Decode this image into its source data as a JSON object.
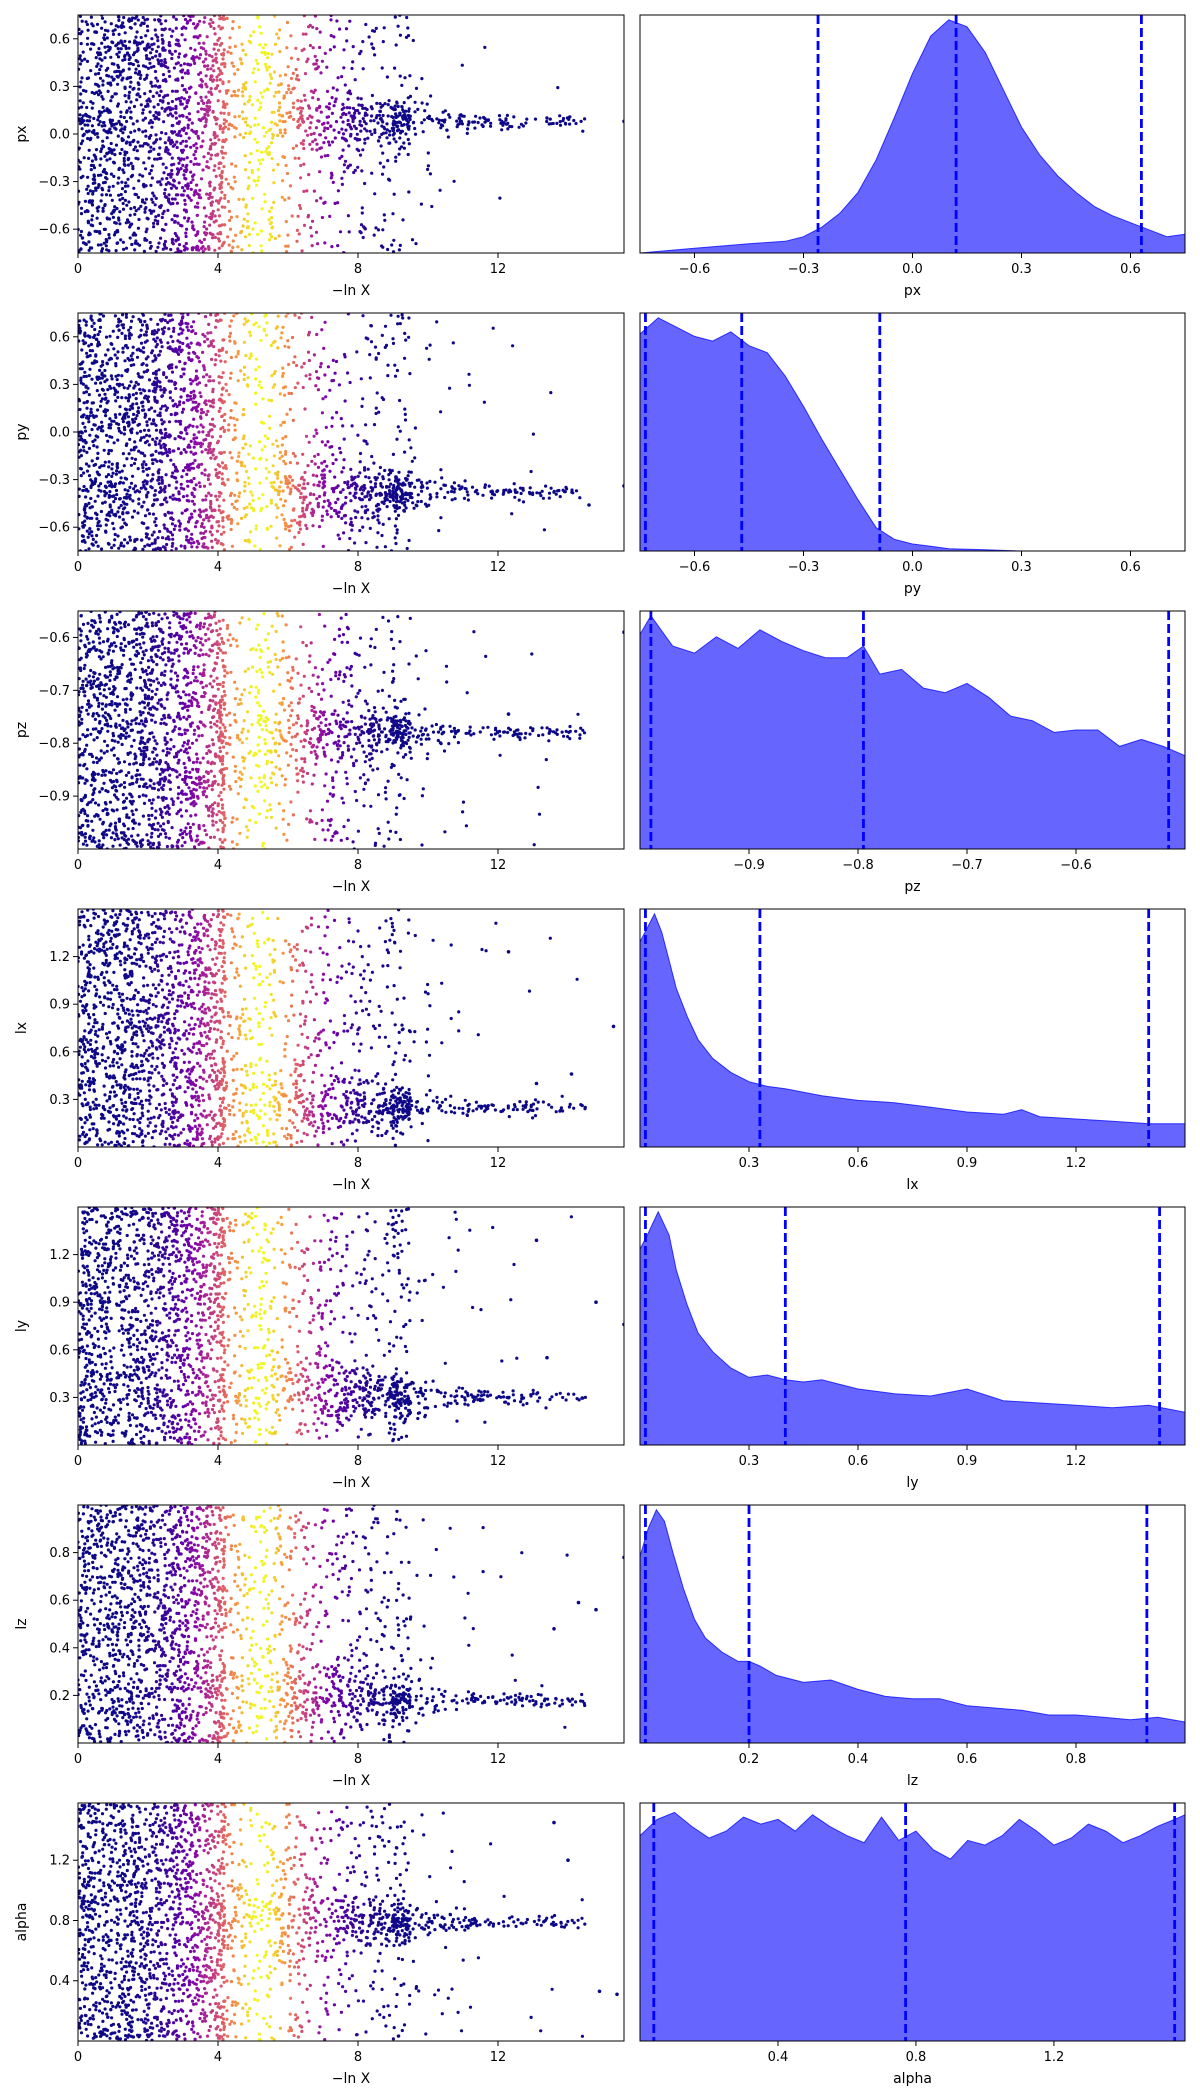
{
  "colors": {
    "trace_colormap": "plasma",
    "kde_fill": "#0000ff",
    "kde_fill_alpha": 0.6,
    "quantile_line": "#0000ff",
    "axes_frame": "#000000"
  },
  "chart_data": [
    {
      "type": "scatter",
      "parameter": "px",
      "xlabel": "−ln X",
      "ylabel": "px",
      "xlim": [
        0,
        15.6
      ],
      "ylim": [
        -0.75,
        0.75
      ],
      "xticks": [
        0,
        4,
        8,
        12
      ],
      "xtick_labels": [
        "0",
        "4",
        "8",
        "12"
      ],
      "yticks": [
        0.6,
        0.3,
        0.0,
        -0.3,
        -0.6
      ],
      "ytick_labels": [
        "0.6",
        "0.3",
        "0.0",
        "−0.3",
        "−0.6"
      ],
      "spread_center": 0.08,
      "colorbar_peak": 5.2,
      "points_x": [
        15.6
      ],
      "points_y": [
        0.08
      ]
    },
    {
      "type": "area",
      "parameter": "px",
      "xlabel": "px",
      "xlim": [
        -0.75,
        0.75
      ],
      "xticks": [
        -0.6,
        -0.3,
        0.0,
        0.3,
        0.6
      ],
      "xtick_labels": [
        "−0.6",
        "−0.3",
        "0.0",
        "0.3",
        "0.6"
      ],
      "quantiles": [
        -0.26,
        0.12,
        0.63
      ],
      "density_x": [
        -0.75,
        -0.6,
        -0.45,
        -0.35,
        -0.3,
        -0.25,
        -0.2,
        -0.15,
        -0.1,
        -0.05,
        0.0,
        0.05,
        0.1,
        0.15,
        0.2,
        0.25,
        0.3,
        0.35,
        0.4,
        0.45,
        0.5,
        0.55,
        0.6,
        0.65,
        0.7,
        0.75
      ],
      "density_y": [
        0.0,
        0.02,
        0.04,
        0.05,
        0.07,
        0.11,
        0.17,
        0.26,
        0.4,
        0.58,
        0.77,
        0.93,
        1.0,
        0.97,
        0.86,
        0.7,
        0.54,
        0.42,
        0.33,
        0.26,
        0.2,
        0.16,
        0.13,
        0.1,
        0.07,
        0.08
      ]
    },
    {
      "type": "scatter",
      "parameter": "py",
      "xlabel": "−ln X",
      "ylabel": "py",
      "xlim": [
        0,
        15.6
      ],
      "ylim": [
        -0.75,
        0.75
      ],
      "xticks": [
        0,
        4,
        8,
        12
      ],
      "xtick_labels": [
        "0",
        "4",
        "8",
        "12"
      ],
      "yticks": [
        0.6,
        0.3,
        0.0,
        -0.3,
        -0.6
      ],
      "ytick_labels": [
        "0.6",
        "0.3",
        "0.0",
        "−0.3",
        "−0.6"
      ],
      "spread_center": -0.38,
      "colorbar_peak": 5.2,
      "points_x": [
        15.6,
        14.6
      ],
      "points_y": [
        -0.34,
        -0.46
      ]
    },
    {
      "type": "area",
      "parameter": "py",
      "xlabel": "py",
      "xlim": [
        -0.75,
        0.75
      ],
      "xticks": [
        -0.6,
        -0.3,
        0.0,
        0.3,
        0.6
      ],
      "xtick_labels": [
        "−0.6",
        "−0.3",
        "0.0",
        "0.3",
        "0.6"
      ],
      "quantiles": [
        -0.735,
        -0.47,
        -0.09
      ],
      "density_x": [
        -0.75,
        -0.7,
        -0.65,
        -0.6,
        -0.55,
        -0.5,
        -0.45,
        -0.4,
        -0.35,
        -0.3,
        -0.25,
        -0.2,
        -0.15,
        -0.1,
        -0.05,
        0.0,
        0.05,
        0.1,
        0.2,
        0.3,
        0.75
      ],
      "density_y": [
        0.93,
        1.0,
        0.96,
        0.92,
        0.9,
        0.94,
        0.88,
        0.85,
        0.75,
        0.62,
        0.48,
        0.35,
        0.22,
        0.1,
        0.05,
        0.03,
        0.02,
        0.01,
        0.005,
        0.0,
        0.0
      ]
    },
    {
      "type": "scatter",
      "parameter": "pz",
      "xlabel": "−ln X",
      "ylabel": "pz",
      "xlim": [
        0,
        15.6
      ],
      "ylim": [
        -1.0,
        -0.55
      ],
      "xticks": [
        0,
        4,
        8,
        12
      ],
      "xtick_labels": [
        "0",
        "4",
        "8",
        "12"
      ],
      "yticks": [
        -0.6,
        -0.7,
        -0.8,
        -0.9
      ],
      "ytick_labels": [
        "−0.6",
        "−0.7",
        "−0.8",
        "−0.9"
      ],
      "spread_center": -0.78,
      "colorbar_peak": 5.2,
      "points_x": [
        15.6,
        12.3
      ],
      "points_y": [
        -0.59,
        -0.745
      ]
    },
    {
      "type": "area",
      "parameter": "pz",
      "xlabel": "pz",
      "xlim": [
        -1.0,
        -0.5
      ],
      "xticks": [
        -0.9,
        -0.8,
        -0.7,
        -0.6
      ],
      "xtick_labels": [
        "−0.9",
        "−0.8",
        "−0.7",
        "−0.6"
      ],
      "quantiles": [
        -0.99,
        -0.795,
        -0.515
      ],
      "density_x": [
        -1.0,
        -0.99,
        -0.97,
        -0.95,
        -0.93,
        -0.91,
        -0.89,
        -0.87,
        -0.85,
        -0.83,
        -0.81,
        -0.795,
        -0.78,
        -0.76,
        -0.74,
        -0.72,
        -0.7,
        -0.68,
        -0.66,
        -0.64,
        -0.62,
        -0.6,
        -0.58,
        -0.56,
        -0.54,
        -0.52,
        -0.5
      ],
      "density_y": [
        0.92,
        1.0,
        0.87,
        0.84,
        0.91,
        0.86,
        0.94,
        0.89,
        0.85,
        0.82,
        0.82,
        0.87,
        0.75,
        0.77,
        0.69,
        0.67,
        0.71,
        0.65,
        0.57,
        0.55,
        0.5,
        0.51,
        0.51,
        0.44,
        0.47,
        0.44,
        0.4
      ]
    },
    {
      "type": "scatter",
      "parameter": "lx",
      "xlabel": "−ln X",
      "ylabel": "lx",
      "xlim": [
        0,
        15.6
      ],
      "ylim": [
        0.0,
        1.5
      ],
      "xticks": [
        0,
        4,
        8,
        12
      ],
      "xtick_labels": [
        "0",
        "4",
        "8",
        "12"
      ],
      "yticks": [
        1.2,
        0.9,
        0.6,
        0.3
      ],
      "ytick_labels": [
        "1.2",
        "0.9",
        "0.6",
        "0.3"
      ],
      "spread_center": 0.25,
      "colorbar_peak": 5.2,
      "points_x": [
        15.3,
        12.3,
        14.1,
        13.1
      ],
      "points_y": [
        0.76,
        1.23,
        0.46,
        0.4
      ]
    },
    {
      "type": "area",
      "parameter": "lx",
      "xlabel": "lx",
      "xlim": [
        0.0,
        1.5
      ],
      "xticks": [
        0.3,
        0.6,
        0.9,
        1.2
      ],
      "xtick_labels": [
        "0.3",
        "0.6",
        "0.9",
        "1.2"
      ],
      "quantiles": [
        0.015,
        0.33,
        1.4
      ],
      "density_x": [
        0.0,
        0.02,
        0.04,
        0.06,
        0.08,
        0.1,
        0.13,
        0.16,
        0.2,
        0.25,
        0.3,
        0.35,
        0.4,
        0.5,
        0.6,
        0.7,
        0.8,
        0.9,
        1.0,
        1.05,
        1.1,
        1.2,
        1.3,
        1.4,
        1.5
      ],
      "density_y": [
        0.88,
        0.94,
        1.0,
        0.92,
        0.8,
        0.68,
        0.56,
        0.46,
        0.38,
        0.32,
        0.28,
        0.26,
        0.25,
        0.22,
        0.2,
        0.19,
        0.17,
        0.15,
        0.14,
        0.16,
        0.13,
        0.12,
        0.11,
        0.1,
        0.1
      ]
    },
    {
      "type": "scatter",
      "parameter": "ly",
      "xlabel": "−ln X",
      "ylabel": "ly",
      "xlim": [
        0,
        15.6
      ],
      "ylim": [
        0.0,
        1.5
      ],
      "xticks": [
        0,
        4,
        8,
        12
      ],
      "xtick_labels": [
        "0",
        "4",
        "8",
        "12"
      ],
      "yticks": [
        1.2,
        0.9,
        0.6,
        0.3
      ],
      "ytick_labels": [
        "1.2",
        "0.9",
        "0.6",
        "0.3"
      ],
      "spread_center": 0.3,
      "colorbar_peak": 5.2,
      "points_x": [
        15.6,
        13.1,
        14.8,
        13.4
      ],
      "points_y": [
        0.76,
        1.29,
        0.9,
        0.55
      ]
    },
    {
      "type": "area",
      "parameter": "ly",
      "xlabel": "ly",
      "xlim": [
        0.0,
        1.5
      ],
      "xticks": [
        0.3,
        0.6,
        0.9,
        1.2
      ],
      "xtick_labels": [
        "0.3",
        "0.6",
        "0.9",
        "1.2"
      ],
      "quantiles": [
        0.015,
        0.4,
        1.43
      ],
      "density_x": [
        0.0,
        0.02,
        0.05,
        0.08,
        0.1,
        0.13,
        0.16,
        0.2,
        0.25,
        0.3,
        0.35,
        0.4,
        0.45,
        0.5,
        0.55,
        0.6,
        0.7,
        0.8,
        0.9,
        1.0,
        1.1,
        1.2,
        1.3,
        1.4,
        1.5
      ],
      "density_y": [
        0.84,
        0.9,
        1.0,
        0.9,
        0.75,
        0.6,
        0.48,
        0.4,
        0.33,
        0.29,
        0.3,
        0.28,
        0.27,
        0.28,
        0.26,
        0.24,
        0.22,
        0.21,
        0.24,
        0.19,
        0.18,
        0.17,
        0.16,
        0.17,
        0.14
      ]
    },
    {
      "type": "scatter",
      "parameter": "lz",
      "xlabel": "−ln X",
      "ylabel": "lz",
      "xlim": [
        0,
        15.6
      ],
      "ylim": [
        0.0,
        1.0
      ],
      "xticks": [
        0,
        4,
        8,
        12
      ],
      "xtick_labels": [
        "0",
        "4",
        "8",
        "12"
      ],
      "yticks": [
        0.8,
        0.6,
        0.4,
        0.2
      ],
      "ytick_labels": [
        "0.8",
        "0.6",
        "0.4",
        "0.2"
      ],
      "spread_center": 0.18,
      "colorbar_peak": 5.2,
      "points_x": [
        15.6,
        14.3,
        14.8,
        13.6
      ],
      "points_y": [
        0.78,
        0.59,
        0.56,
        0.48
      ]
    },
    {
      "type": "area",
      "parameter": "lz",
      "xlabel": "lz",
      "xlim": [
        0.0,
        1.0
      ],
      "xticks": [
        0.2,
        0.4,
        0.6,
        0.8
      ],
      "xtick_labels": [
        "0.2",
        "0.4",
        "0.6",
        "0.8"
      ],
      "quantiles": [
        0.01,
        0.2,
        0.93
      ],
      "density_x": [
        0.0,
        0.015,
        0.03,
        0.045,
        0.06,
        0.08,
        0.1,
        0.12,
        0.15,
        0.18,
        0.2,
        0.22,
        0.25,
        0.3,
        0.35,
        0.4,
        0.45,
        0.5,
        0.55,
        0.6,
        0.65,
        0.7,
        0.75,
        0.8,
        0.85,
        0.9,
        0.95,
        1.0
      ],
      "density_y": [
        0.8,
        0.92,
        1.0,
        0.95,
        0.82,
        0.66,
        0.53,
        0.45,
        0.39,
        0.35,
        0.35,
        0.33,
        0.29,
        0.26,
        0.27,
        0.23,
        0.2,
        0.19,
        0.19,
        0.16,
        0.15,
        0.14,
        0.12,
        0.12,
        0.11,
        0.1,
        0.11,
        0.09
      ]
    },
    {
      "type": "scatter",
      "parameter": "alpha",
      "xlabel": "−ln X",
      "ylabel": "alpha",
      "xlim": [
        0,
        15.6
      ],
      "ylim": [
        0.0,
        1.58
      ],
      "xticks": [
        0,
        4,
        8,
        12
      ],
      "xtick_labels": [
        "0",
        "4",
        "8",
        "12"
      ],
      "yticks": [
        1.2,
        0.8,
        0.4
      ],
      "ytick_labels": [
        "1.2",
        "0.8",
        "0.4"
      ],
      "spread_center": 0.79,
      "colorbar_peak": 5.2,
      "points_x": [
        14.9,
        15.4,
        13.6,
        14.0
      ],
      "points_y": [
        0.33,
        0.31,
        1.45,
        1.2
      ]
    },
    {
      "type": "area",
      "parameter": "alpha",
      "xlabel": "alpha",
      "xlim": [
        0.0,
        1.58
      ],
      "xticks": [
        0.4,
        0.8,
        1.2
      ],
      "xtick_labels": [
        "0.4",
        "0.8",
        "1.2"
      ],
      "quantiles": [
        0.04,
        0.77,
        1.55
      ],
      "density_x": [
        0.0,
        0.05,
        0.1,
        0.15,
        0.2,
        0.25,
        0.3,
        0.35,
        0.4,
        0.45,
        0.5,
        0.55,
        0.6,
        0.65,
        0.7,
        0.75,
        0.8,
        0.85,
        0.9,
        0.95,
        1.0,
        1.05,
        1.1,
        1.15,
        1.2,
        1.25,
        1.3,
        1.35,
        1.4,
        1.45,
        1.5,
        1.55,
        1.58
      ],
      "density_y": [
        0.88,
        0.95,
        0.98,
        0.92,
        0.87,
        0.9,
        0.96,
        0.93,
        0.95,
        0.9,
        0.97,
        0.92,
        0.88,
        0.85,
        0.96,
        0.86,
        0.9,
        0.82,
        0.78,
        0.86,
        0.84,
        0.88,
        0.95,
        0.9,
        0.84,
        0.87,
        0.93,
        0.9,
        0.85,
        0.88,
        0.92,
        0.95,
        0.97
      ]
    }
  ]
}
